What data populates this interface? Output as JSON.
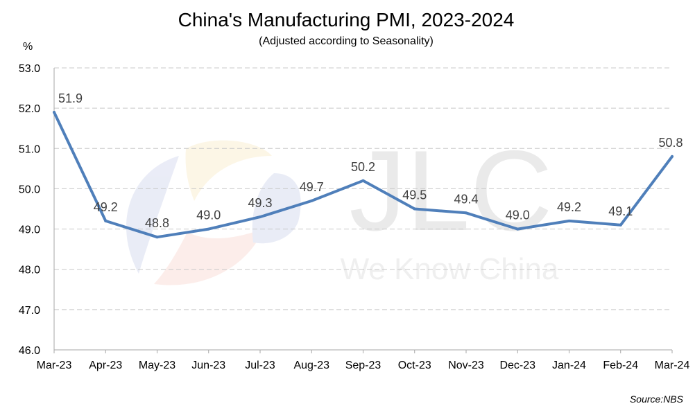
{
  "chart_data": {
    "type": "line",
    "title": "China's Manufacturing PMI, 2023-2024",
    "subtitle": "(Adjusted according to Seasonality)",
    "ylabel": "%",
    "xlabel": "",
    "categories": [
      "Mar-23",
      "Apr-23",
      "May-23",
      "Jun-23",
      "Jul-23",
      "Aug-23",
      "Sep-23",
      "Oct-23",
      "Nov-23",
      "Dec-23",
      "Jan-24",
      "Feb-24",
      "Mar-24"
    ],
    "series": [
      {
        "name": "Manufacturing PMI",
        "values": [
          51.9,
          49.2,
          48.8,
          49.0,
          49.3,
          49.7,
          50.2,
          49.5,
          49.4,
          49.0,
          49.2,
          49.1,
          50.8
        ],
        "labels": [
          "51.9",
          "49.2",
          "48.8",
          "49.0",
          "49.3",
          "49.7",
          "50.2",
          "49.5",
          "49.4",
          "49.0",
          "49.2",
          "49.1",
          "50.8"
        ]
      }
    ],
    "ylim": [
      46,
      53
    ],
    "yticks": [
      "46.0",
      "47.0",
      "48.0",
      "49.0",
      "50.0",
      "51.0",
      "52.0",
      "53.0"
    ],
    "grid": true,
    "source": "Source:NBS",
    "watermark": "JLC We Know China",
    "colors": {
      "line": "#4F7FBA",
      "grid": "#C8C8C8",
      "axis": "#A6A6A6"
    }
  }
}
